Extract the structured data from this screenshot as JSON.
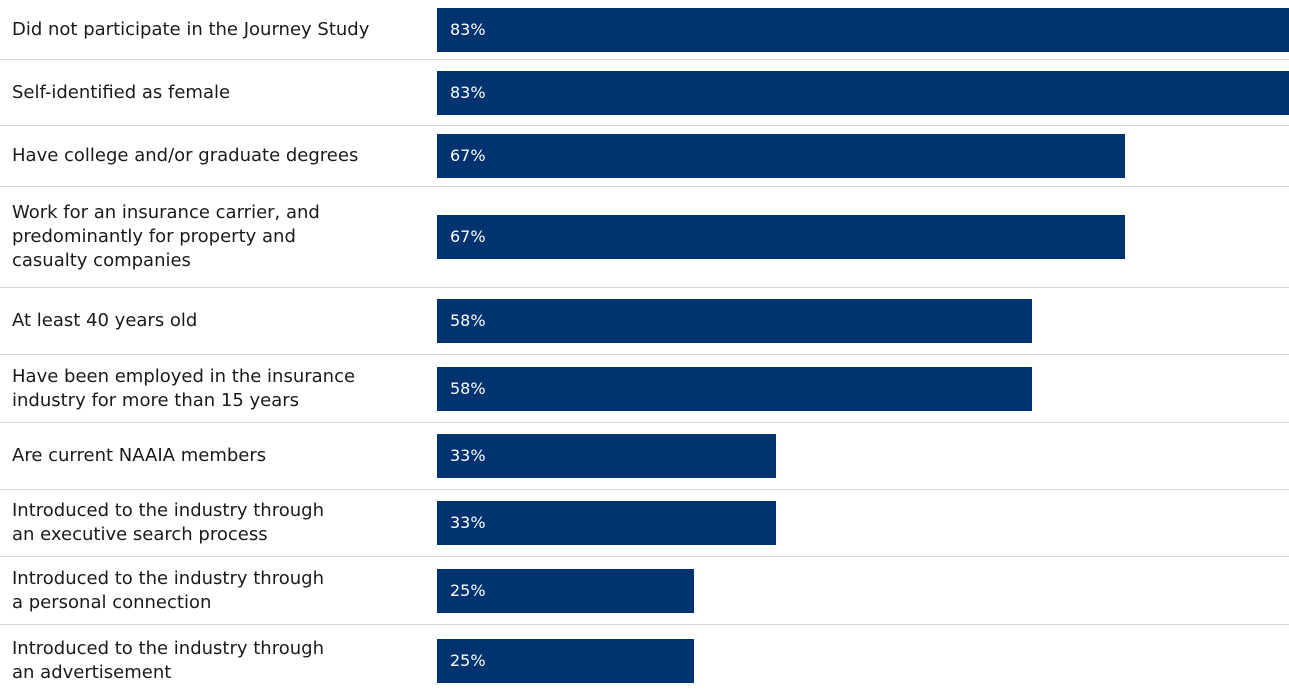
{
  "chart_data": {
    "type": "bar",
    "orientation": "horizontal",
    "categories": [
      "Did not participate in the Journey Study",
      "Self-identified as female",
      "Have college and/or graduate degrees",
      "Work for an insurance carrier, and\npredominantly for property and\ncasualty companies",
      "At least 40 years old",
      "Have been employed in the insurance\nindustry for more than 15 years",
      "Are current NAAIA members",
      "Introduced to the industry through\nan executive search process",
      "Introduced to the industry through\na personal connection",
      "Introduced to the industry through\nan advertisement"
    ],
    "values": [
      83,
      83,
      67,
      67,
      58,
      58,
      33,
      33,
      25,
      25
    ],
    "value_labels": [
      "83%",
      "83%",
      "67%",
      "67%",
      "58%",
      "58%",
      "33%",
      "33%",
      "25%",
      "25%"
    ],
    "xlim": [
      0,
      83
    ],
    "grid": false,
    "bar_color": "#003370",
    "separator_color": "#d6d6d6"
  }
}
